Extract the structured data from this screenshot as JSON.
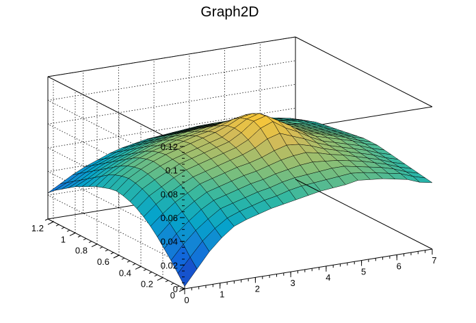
{
  "chart_data": {
    "type": "surface",
    "title": "Graph2D",
    "xlabel": "",
    "ylabel": "",
    "zlabel": "",
    "xlim": [
      0,
      7
    ],
    "ylim": [
      0,
      1.25
    ],
    "zlim": [
      0,
      0.12
    ],
    "x_ticks": [
      "0",
      "1",
      "2",
      "3",
      "4",
      "5",
      "6",
      "7"
    ],
    "y_ticks": [
      "0",
      "0.2",
      "0.4",
      "0.6",
      "0.8",
      "1",
      "1.2"
    ],
    "z_ticks": [
      "0",
      "0.02",
      "0.04",
      "0.06",
      "0.08",
      "0.1",
      "0.12"
    ],
    "grid": true,
    "palette": [
      "#352a87",
      "#0f5cdd",
      "#1481d6",
      "#06a4ca",
      "#2eb7a4",
      "#87bf77",
      "#d1bb59",
      "#fec832",
      "#f9fb0e"
    ],
    "x": [
      0.0,
      0.35,
      0.7,
      1.05,
      1.4,
      1.75,
      2.1,
      2.45,
      2.8,
      3.15,
      3.5,
      3.85,
      4.2,
      4.55,
      4.9,
      5.25,
      5.6,
      5.95,
      6.3,
      6.65,
      7.0
    ],
    "y": [
      0.0,
      0.0625,
      0.125,
      0.1875,
      0.25,
      0.3125,
      0.375,
      0.4375,
      0.5,
      0.5625,
      0.625,
      0.6875,
      0.75,
      0.8125,
      0.875,
      0.9375,
      1.0,
      1.0625,
      1.125,
      1.1875,
      1.25
    ],
    "z": [
      [
        0.002,
        0.015,
        0.028,
        0.038,
        0.046,
        0.05,
        0.053,
        0.056,
        0.058,
        0.06,
        0.062,
        0.064,
        0.065,
        0.066,
        0.068,
        0.067,
        0.066,
        0.064,
        0.062,
        0.058,
        0.056
      ],
      [
        0.01,
        0.022,
        0.034,
        0.043,
        0.05,
        0.054,
        0.057,
        0.06,
        0.062,
        0.065,
        0.067,
        0.068,
        0.069,
        0.07,
        0.071,
        0.07,
        0.068,
        0.066,
        0.064,
        0.06,
        0.057
      ],
      [
        0.018,
        0.03,
        0.04,
        0.048,
        0.055,
        0.058,
        0.061,
        0.064,
        0.066,
        0.069,
        0.071,
        0.072,
        0.073,
        0.074,
        0.074,
        0.072,
        0.07,
        0.068,
        0.065,
        0.061,
        0.058
      ],
      [
        0.025,
        0.036,
        0.045,
        0.053,
        0.059,
        0.062,
        0.065,
        0.068,
        0.07,
        0.073,
        0.075,
        0.077,
        0.078,
        0.077,
        0.076,
        0.074,
        0.072,
        0.069,
        0.066,
        0.062,
        0.059
      ],
      [
        0.032,
        0.042,
        0.05,
        0.057,
        0.063,
        0.066,
        0.069,
        0.072,
        0.074,
        0.077,
        0.08,
        0.082,
        0.083,
        0.081,
        0.078,
        0.076,
        0.073,
        0.07,
        0.067,
        0.063,
        0.06
      ],
      [
        0.038,
        0.047,
        0.055,
        0.061,
        0.067,
        0.07,
        0.073,
        0.076,
        0.078,
        0.081,
        0.085,
        0.088,
        0.087,
        0.084,
        0.08,
        0.077,
        0.074,
        0.071,
        0.068,
        0.064,
        0.061
      ],
      [
        0.043,
        0.052,
        0.059,
        0.065,
        0.07,
        0.073,
        0.076,
        0.079,
        0.082,
        0.086,
        0.092,
        0.095,
        0.091,
        0.087,
        0.082,
        0.078,
        0.075,
        0.072,
        0.069,
        0.065,
        0.062
      ],
      [
        0.047,
        0.056,
        0.062,
        0.068,
        0.073,
        0.076,
        0.079,
        0.082,
        0.085,
        0.09,
        0.098,
        0.102,
        0.095,
        0.09,
        0.084,
        0.079,
        0.076,
        0.073,
        0.07,
        0.066,
        0.063
      ],
      [
        0.05,
        0.059,
        0.065,
        0.07,
        0.075,
        0.078,
        0.081,
        0.084,
        0.087,
        0.093,
        0.101,
        0.104,
        0.098,
        0.092,
        0.085,
        0.08,
        0.077,
        0.074,
        0.071,
        0.067,
        0.064
      ],
      [
        0.052,
        0.061,
        0.067,
        0.072,
        0.076,
        0.079,
        0.082,
        0.085,
        0.088,
        0.094,
        0.1,
        0.103,
        0.097,
        0.091,
        0.085,
        0.08,
        0.077,
        0.074,
        0.071,
        0.067,
        0.064
      ],
      [
        0.053,
        0.062,
        0.068,
        0.073,
        0.077,
        0.08,
        0.083,
        0.086,
        0.089,
        0.093,
        0.098,
        0.1,
        0.095,
        0.09,
        0.084,
        0.079,
        0.076,
        0.073,
        0.07,
        0.067,
        0.064
      ],
      [
        0.052,
        0.061,
        0.067,
        0.072,
        0.076,
        0.079,
        0.082,
        0.085,
        0.087,
        0.09,
        0.094,
        0.096,
        0.092,
        0.088,
        0.083,
        0.078,
        0.075,
        0.072,
        0.069,
        0.066,
        0.063
      ],
      [
        0.05,
        0.059,
        0.065,
        0.07,
        0.074,
        0.077,
        0.08,
        0.082,
        0.084,
        0.087,
        0.089,
        0.09,
        0.088,
        0.085,
        0.081,
        0.077,
        0.074,
        0.071,
        0.068,
        0.065,
        0.062
      ],
      [
        0.048,
        0.056,
        0.062,
        0.067,
        0.071,
        0.074,
        0.077,
        0.079,
        0.081,
        0.083,
        0.084,
        0.085,
        0.084,
        0.082,
        0.079,
        0.076,
        0.073,
        0.07,
        0.067,
        0.064,
        0.061
      ],
      [
        0.045,
        0.052,
        0.058,
        0.063,
        0.067,
        0.071,
        0.074,
        0.076,
        0.078,
        0.079,
        0.08,
        0.081,
        0.08,
        0.079,
        0.077,
        0.074,
        0.071,
        0.069,
        0.066,
        0.063,
        0.06
      ],
      [
        0.042,
        0.048,
        0.054,
        0.059,
        0.063,
        0.067,
        0.07,
        0.072,
        0.074,
        0.075,
        0.076,
        0.077,
        0.077,
        0.076,
        0.074,
        0.072,
        0.07,
        0.067,
        0.065,
        0.062,
        0.059
      ],
      [
        0.039,
        0.044,
        0.05,
        0.055,
        0.059,
        0.063,
        0.066,
        0.068,
        0.07,
        0.071,
        0.072,
        0.073,
        0.073,
        0.073,
        0.072,
        0.07,
        0.068,
        0.066,
        0.064,
        0.061,
        0.058
      ],
      [
        0.035,
        0.04,
        0.046,
        0.051,
        0.055,
        0.059,
        0.062,
        0.064,
        0.066,
        0.067,
        0.068,
        0.069,
        0.07,
        0.07,
        0.069,
        0.068,
        0.066,
        0.064,
        0.062,
        0.06,
        0.057
      ],
      [
        0.031,
        0.036,
        0.042,
        0.047,
        0.051,
        0.055,
        0.058,
        0.06,
        0.062,
        0.063,
        0.064,
        0.065,
        0.066,
        0.066,
        0.066,
        0.065,
        0.064,
        0.062,
        0.06,
        0.058,
        0.055
      ],
      [
        0.027,
        0.032,
        0.038,
        0.043,
        0.047,
        0.051,
        0.054,
        0.056,
        0.058,
        0.059,
        0.06,
        0.061,
        0.062,
        0.062,
        0.062,
        0.062,
        0.061,
        0.06,
        0.058,
        0.056,
        0.053
      ],
      [
        0.022,
        0.028,
        0.034,
        0.039,
        0.043,
        0.047,
        0.05,
        0.052,
        0.054,
        0.055,
        0.056,
        0.057,
        0.058,
        0.058,
        0.058,
        0.058,
        0.058,
        0.057,
        0.055,
        0.053,
        0.05
      ]
    ]
  }
}
